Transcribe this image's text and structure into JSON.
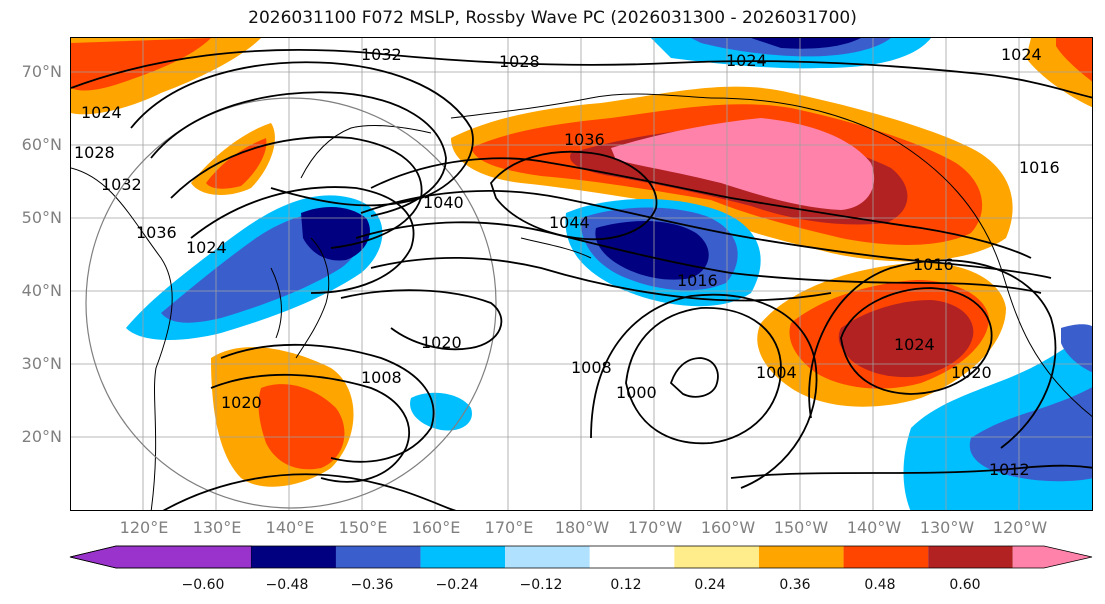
{
  "title": "2026031100 F072 MSLP, Rossby Wave PC (2026031300 - 2026031700)",
  "lat_labels": [
    "70°N",
    "60°N",
    "50°N",
    "40°N",
    "30°N",
    "20°N"
  ],
  "lon_labels": [
    "120°E",
    "130°E",
    "140°E",
    "150°E",
    "160°E",
    "170°E",
    "180°W",
    "170°W",
    "160°W",
    "150°W",
    "140°W",
    "130°W",
    "120°W"
  ],
  "colorbar": {
    "ticks": [
      "−0.60",
      "−0.48",
      "−0.36",
      "−0.24",
      "−0.12",
      "0.12",
      "0.24",
      "0.36",
      "0.48",
      "0.60"
    ],
    "colors": [
      "#9933cc",
      "#000080",
      "#3a5fcd",
      "#00bfff",
      "#b0e2ff",
      "#ffffff",
      "#ffec8b",
      "#ffa500",
      "#ff4500",
      "#b22222",
      "#ff82ab"
    ]
  },
  "contour_labels": [
    "1032",
    "1028",
    "1024",
    "1024",
    "1036",
    "1044",
    "1040",
    "1024",
    "1028",
    "1032",
    "1036",
    "1024",
    "1016",
    "1016",
    "1020",
    "1008",
    "1008",
    "1000",
    "1004",
    "1024",
    "1020",
    "1020",
    "1012",
    "1016"
  ]
}
